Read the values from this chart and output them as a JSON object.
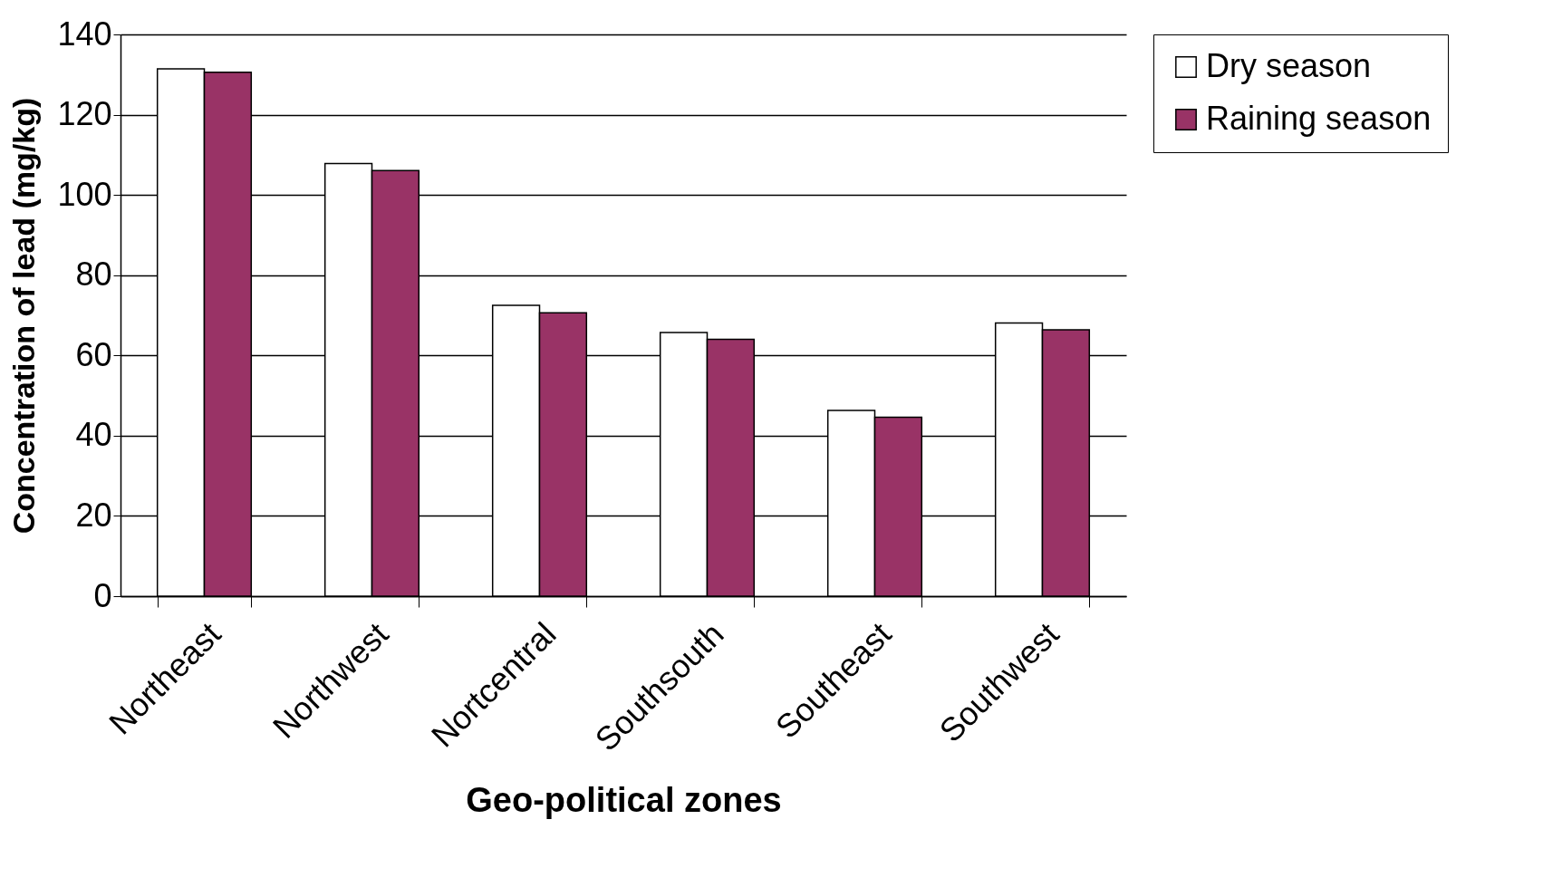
{
  "chart_data": {
    "type": "bar",
    "xlabel": "Geo-political zones",
    "ylabel": "Concentration of lead (mg/kg)",
    "categories": [
      "Northeast",
      "Northwest",
      "Nortcentral",
      "Southsouth",
      "Southeast",
      "Southwest"
    ],
    "series": [
      {
        "name": "Dry season",
        "color": "#ffffff",
        "values": [
          131.4,
          107.8,
          72.5,
          65.7,
          46.3,
          68.1
        ]
      },
      {
        "name": "Raining season",
        "color": "#993366",
        "values": [
          130.6,
          106.1,
          70.6,
          64.0,
          44.6,
          66.4
        ]
      }
    ],
    "ylim": [
      0,
      140
    ],
    "yticks": [
      0,
      20,
      40,
      60,
      80,
      100,
      120,
      140
    ],
    "grid": "y",
    "legend": "right"
  }
}
